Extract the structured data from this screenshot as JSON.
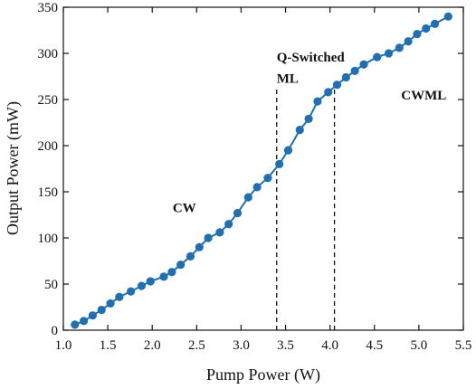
{
  "chart_data": {
    "type": "line",
    "title": "",
    "xlabel": "Pump Power (W)",
    "ylabel": "Output Power (mW)",
    "xlim": [
      1.0,
      5.5
    ],
    "ylim": [
      0,
      350
    ],
    "x_ticks": [
      "1.0",
      "1.5",
      "2.0",
      "2.5",
      "3.0",
      "3.5",
      "4.0",
      "4.5",
      "5.0",
      "5.5"
    ],
    "y_ticks": [
      "0",
      "50",
      "100",
      "150",
      "200",
      "250",
      "300",
      "350"
    ],
    "grid": false,
    "series_color": "#1f6fb2",
    "series": [
      {
        "x": [
          1.13,
          1.23,
          1.33,
          1.43,
          1.53,
          1.63,
          1.76,
          1.88,
          1.98,
          2.13,
          2.22,
          2.32,
          2.43,
          2.53,
          2.63,
          2.76,
          2.86,
          2.96,
          3.08,
          3.18,
          3.3,
          3.43,
          3.53,
          3.66,
          3.76,
          3.86,
          3.98,
          4.08,
          4.18,
          4.28,
          4.38,
          4.53,
          4.66,
          4.78,
          4.88,
          4.98,
          5.08,
          5.18,
          5.33
        ],
        "y": [
          6,
          10,
          16,
          22,
          29,
          36,
          42,
          48,
          53,
          58,
          63,
          71,
          80,
          90,
          100,
          106,
          115,
          127,
          144,
          155,
          165,
          180,
          195,
          217,
          229,
          248,
          258,
          266,
          274,
          281,
          288,
          296,
          300,
          306,
          313,
          321,
          327,
          332,
          340
        ]
      }
    ],
    "boundaries": [
      3.4,
      4.05
    ],
    "annotations": [
      {
        "text": "CW",
        "x": 2.23,
        "y": 128
      },
      {
        "text": "Q-Switched",
        "x": 3.4,
        "y": 291
      },
      {
        "text": "ML",
        "x": 3.4,
        "y": 268
      },
      {
        "text": "CWML",
        "x": 4.8,
        "y": 250
      }
    ]
  }
}
